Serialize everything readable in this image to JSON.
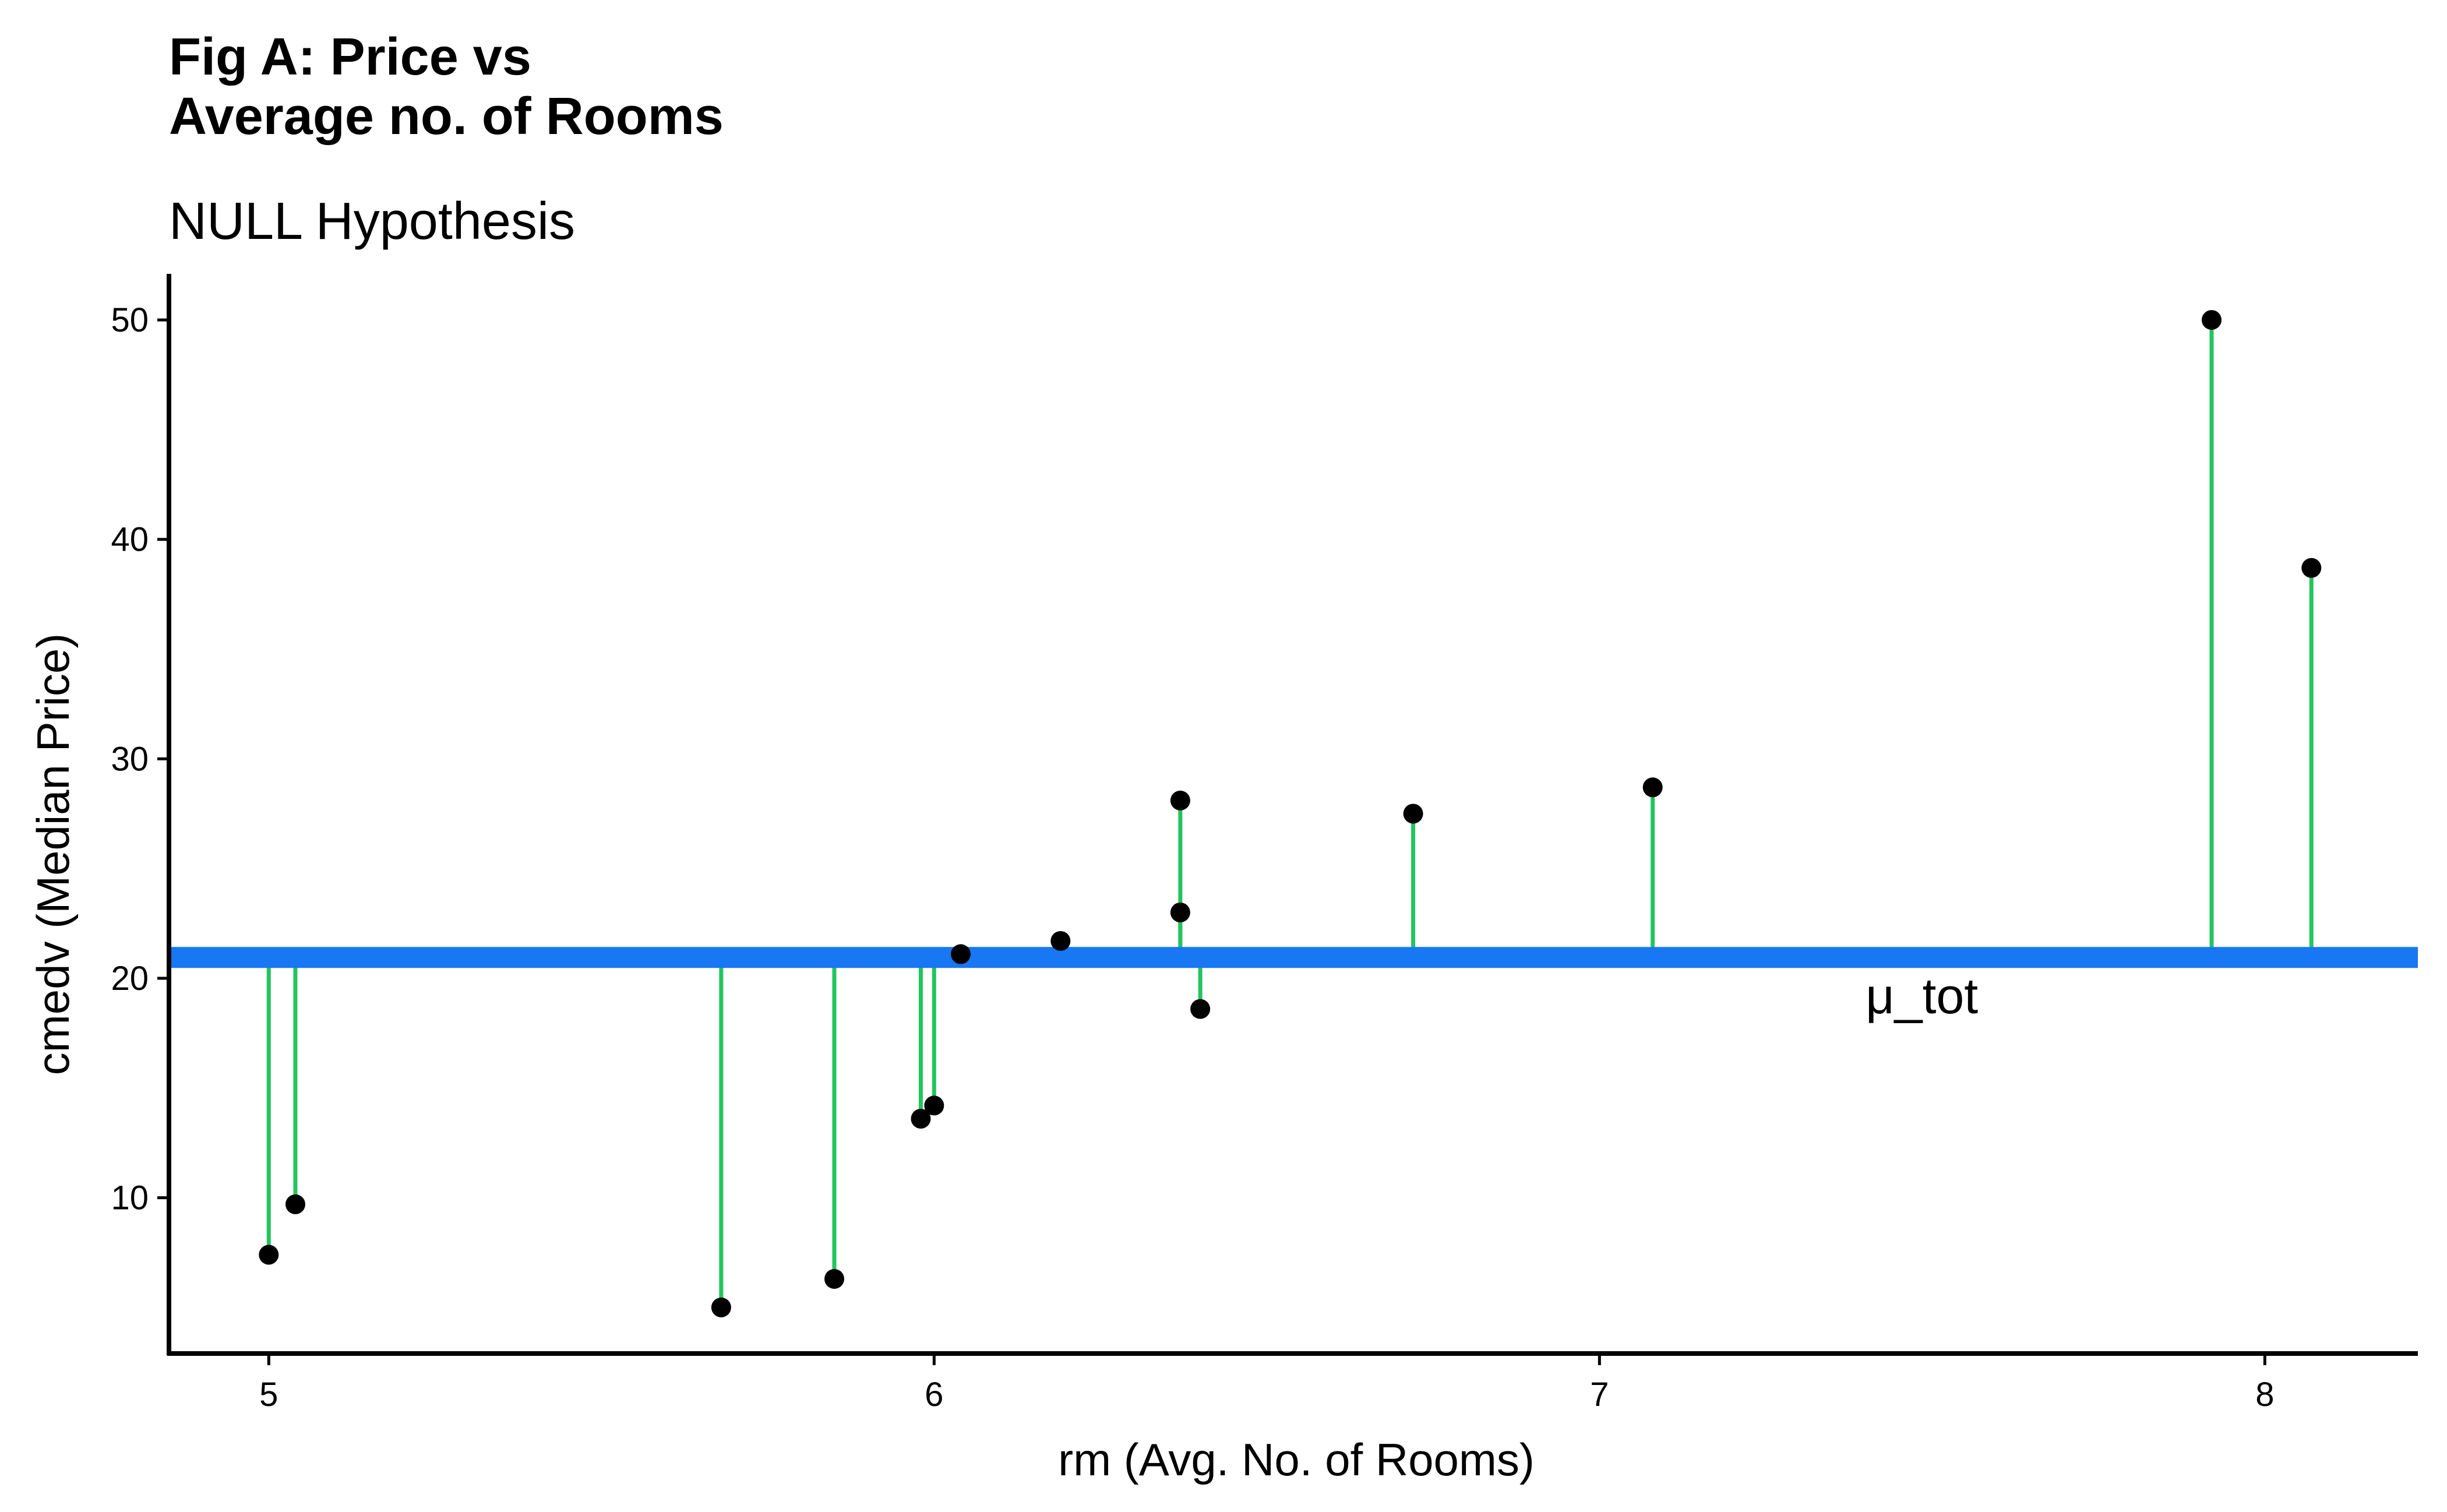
{
  "chart_data": {
    "type": "scatter",
    "title_lines": [
      "Fig A: Price vs",
      "Average no. of Rooms"
    ],
    "subtitle": "NULL Hypothesis",
    "xlabel": "rm (Avg. No. of Rooms)",
    "ylabel": "cmedv (Median Price)",
    "xlim": [
      4.85,
      8.23
    ],
    "ylim": [
      2.9,
      52.1
    ],
    "x_ticks": [
      5,
      6,
      7,
      8
    ],
    "y_ticks": [
      10,
      20,
      30,
      40,
      50
    ],
    "grid": false,
    "mean_line": {
      "value": 20.95,
      "label": "μ_tot",
      "label_position": [
        7.4,
        19.2
      ],
      "color": "#1877f2"
    },
    "residual_color": "#22c55e",
    "point_color": "#000000",
    "points": [
      {
        "x": 5.0,
        "y": 7.4
      },
      {
        "x": 5.04,
        "y": 9.7
      },
      {
        "x": 5.68,
        "y": 5.0
      },
      {
        "x": 5.85,
        "y": 6.3
      },
      {
        "x": 5.98,
        "y": 13.6
      },
      {
        "x": 6.0,
        "y": 14.2
      },
      {
        "x": 6.04,
        "y": 21.1
      },
      {
        "x": 6.19,
        "y": 21.7
      },
      {
        "x": 6.37,
        "y": 28.1
      },
      {
        "x": 6.37,
        "y": 23.0
      },
      {
        "x": 6.4,
        "y": 18.6
      },
      {
        "x": 6.72,
        "y": 27.5
      },
      {
        "x": 7.08,
        "y": 28.7
      },
      {
        "x": 7.92,
        "y": 50.0
      },
      {
        "x": 8.07,
        "y": 38.7
      }
    ]
  }
}
